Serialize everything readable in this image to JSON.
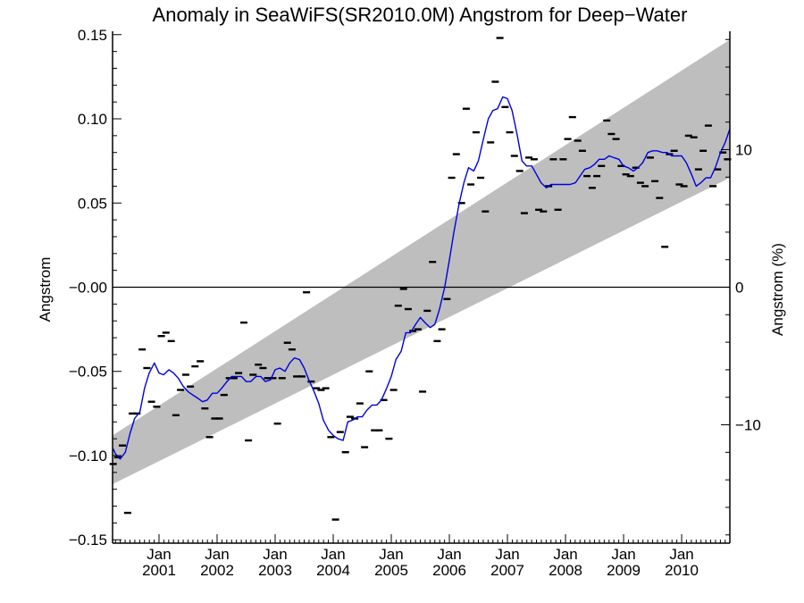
{
  "chart_data": {
    "type": "line",
    "title": "Anomaly in SeaWiFS(SR2010.0M) Angstrom for Deep−Water",
    "ylabel": "Angstrom",
    "ylabel_right": "Angstrom (%)",
    "xlabel": "",
    "xlim": [
      2000.2,
      2010.83
    ],
    "ylim": [
      -0.152,
      0.152
    ],
    "ylim_right": [
      -18.6,
      18.6
    ],
    "x_ticks": [
      {
        "value": 2001.0,
        "line1": "Jan",
        "line2": "2001"
      },
      {
        "value": 2002.0,
        "line1": "Jan",
        "line2": "2002"
      },
      {
        "value": 2003.0,
        "line1": "Jan",
        "line2": "2003"
      },
      {
        "value": 2004.0,
        "line1": "Jan",
        "line2": "2004"
      },
      {
        "value": 2005.0,
        "line1": "Jan",
        "line2": "2005"
      },
      {
        "value": 2006.0,
        "line1": "Jan",
        "line2": "2006"
      },
      {
        "value": 2007.0,
        "line1": "Jan",
        "line2": "2007"
      },
      {
        "value": 2008.0,
        "line1": "Jan",
        "line2": "2008"
      },
      {
        "value": 2009.0,
        "line1": "Jan",
        "line2": "2009"
      },
      {
        "value": 2010.0,
        "line1": "Jan",
        "line2": "2010"
      }
    ],
    "y_ticks": [
      {
        "value": 0.15,
        "label": "0.15"
      },
      {
        "value": 0.1,
        "label": "0.10"
      },
      {
        "value": 0.05,
        "label": "0.05"
      },
      {
        "value": 0.0,
        "label": "−0.00"
      },
      {
        "value": -0.05,
        "label": "−0.05"
      },
      {
        "value": -0.1,
        "label": "−0.10"
      },
      {
        "value": -0.15,
        "label": "−0.15"
      }
    ],
    "y_ticks_right": [
      {
        "value": 10,
        "label": "10"
      },
      {
        "value": 0,
        "label": "0"
      },
      {
        "value": -10,
        "label": "−10"
      }
    ],
    "zero_line": 0,
    "trend_band": {
      "color": "#bebebe",
      "upper": [
        [
          2000.2,
          -0.088
        ],
        [
          2010.83,
          0.147
        ]
      ],
      "lower": [
        [
          2000.2,
          -0.117
        ],
        [
          2010.83,
          0.065
        ]
      ]
    },
    "series": [
      {
        "kind": "markers",
        "color": "#000000",
        "x": [
          2000.21,
          2000.29,
          2000.37,
          2000.46,
          2000.54,
          2000.62,
          2000.71,
          2000.79,
          2000.87,
          2000.96,
          2001.04,
          2001.12,
          2001.21,
          2001.29,
          2001.37,
          2001.46,
          2001.54,
          2001.62,
          2001.71,
          2001.79,
          2001.87,
          2001.96,
          2002.04,
          2002.12,
          2002.21,
          2002.29,
          2002.37,
          2002.46,
          2002.54,
          2002.62,
          2002.71,
          2002.79,
          2002.87,
          2002.96,
          2003.04,
          2003.12,
          2003.21,
          2003.29,
          2003.37,
          2003.46,
          2003.54,
          2003.62,
          2003.71,
          2003.79,
          2003.87,
          2003.96,
          2004.04,
          2004.12,
          2004.21,
          2004.29,
          2004.37,
          2004.46,
          2004.54,
          2004.62,
          2004.71,
          2004.79,
          2004.87,
          2004.96,
          2005.04,
          2005.12,
          2005.21,
          2005.29,
          2005.37,
          2005.46,
          2005.54,
          2005.62,
          2005.71,
          2005.79,
          2005.87,
          2005.96,
          2006.04,
          2006.12,
          2006.21,
          2006.29,
          2006.37,
          2006.46,
          2006.54,
          2006.62,
          2006.71,
          2006.79,
          2006.87,
          2006.96,
          2007.04,
          2007.12,
          2007.21,
          2007.29,
          2007.37,
          2007.46,
          2007.54,
          2007.62,
          2007.71,
          2007.79,
          2007.87,
          2007.96,
          2008.04,
          2008.12,
          2008.21,
          2008.29,
          2008.37,
          2008.46,
          2008.54,
          2008.62,
          2008.71,
          2008.79,
          2008.87,
          2008.96,
          2009.04,
          2009.12,
          2009.21,
          2009.29,
          2009.37,
          2009.46,
          2009.54,
          2009.62,
          2009.71,
          2009.79,
          2009.87,
          2009.96,
          2010.04,
          2010.12,
          2010.21,
          2010.29,
          2010.37,
          2010.46,
          2010.54,
          2010.62,
          2010.71,
          2010.79
        ],
        "values": [
          -0.105,
          -0.101,
          -0.094,
          -0.134,
          -0.075,
          -0.075,
          -0.037,
          -0.048,
          -0.068,
          -0.071,
          -0.029,
          -0.027,
          -0.032,
          -0.076,
          -0.061,
          -0.052,
          -0.059,
          -0.047,
          -0.044,
          -0.072,
          -0.089,
          -0.078,
          -0.078,
          -0.064,
          -0.054,
          -0.054,
          -0.051,
          -0.021,
          -0.091,
          -0.052,
          -0.046,
          -0.048,
          -0.054,
          -0.054,
          -0.081,
          -0.054,
          -0.033,
          -0.037,
          -0.053,
          -0.053,
          -0.003,
          -0.056,
          -0.06,
          -0.061,
          -0.06,
          -0.089,
          -0.138,
          -0.086,
          -0.098,
          -0.077,
          -0.078,
          -0.069,
          -0.095,
          -0.05,
          -0.085,
          -0.085,
          -0.067,
          -0.09,
          -0.061,
          -0.011,
          -0.001,
          -0.013,
          -0.026,
          -0.025,
          -0.062,
          -0.014,
          0.015,
          -0.032,
          -0.025,
          -0.007,
          0.065,
          0.079,
          0.05,
          0.106,
          0.061,
          0.092,
          0.065,
          0.045,
          0.086,
          0.122,
          0.148,
          0.107,
          0.092,
          0.078,
          0.069,
          0.044,
          0.077,
          0.076,
          0.046,
          0.045,
          0.06,
          0.076,
          0.046,
          0.076,
          0.088,
          0.101,
          0.087,
          0.081,
          0.066,
          0.059,
          0.066,
          0.072,
          0.099,
          0.091,
          0.088,
          0.072,
          0.067,
          0.066,
          0.071,
          0.062,
          0.06,
          0.077,
          0.063,
          0.053,
          0.024,
          0.079,
          0.081,
          0.061,
          0.06,
          0.09,
          0.089,
          0.07,
          0.081,
          0.096,
          0.06,
          0.07,
          0.08,
          0.076
        ]
      },
      {
        "kind": "line",
        "color": "#0000dd",
        "x": [
          2000.21,
          2000.25,
          2000.33,
          2000.42,
          2000.5,
          2000.58,
          2000.67,
          2000.75,
          2000.83,
          2000.92,
          2001.0,
          2001.08,
          2001.17,
          2001.25,
          2001.33,
          2001.42,
          2001.5,
          2001.58,
          2001.67,
          2001.75,
          2001.83,
          2001.92,
          2002.0,
          2002.08,
          2002.17,
          2002.25,
          2002.33,
          2002.42,
          2002.5,
          2002.58,
          2002.67,
          2002.75,
          2002.83,
          2002.92,
          2003.0,
          2003.08,
          2003.17,
          2003.25,
          2003.33,
          2003.42,
          2003.5,
          2003.58,
          2003.67,
          2003.75,
          2003.83,
          2003.92,
          2004.0,
          2004.08,
          2004.17,
          2004.25,
          2004.33,
          2004.42,
          2004.5,
          2004.58,
          2004.67,
          2004.75,
          2004.83,
          2004.92,
          2005.0,
          2005.08,
          2005.17,
          2005.25,
          2005.33,
          2005.42,
          2005.5,
          2005.58,
          2005.67,
          2005.75,
          2005.83,
          2005.92,
          2006.0,
          2006.08,
          2006.17,
          2006.25,
          2006.33,
          2006.42,
          2006.5,
          2006.58,
          2006.67,
          2006.75,
          2006.83,
          2006.92,
          2007.0,
          2007.08,
          2007.17,
          2007.25,
          2007.33,
          2007.42,
          2007.5,
          2007.58,
          2007.67,
          2007.75,
          2007.83,
          2007.92,
          2008.0,
          2008.08,
          2008.17,
          2008.25,
          2008.33,
          2008.42,
          2008.5,
          2008.58,
          2008.67,
          2008.75,
          2008.83,
          2008.92,
          2009.0,
          2009.08,
          2009.17,
          2009.25,
          2009.33,
          2009.42,
          2009.5,
          2009.58,
          2009.67,
          2009.75,
          2009.83,
          2009.92,
          2010.0,
          2010.08,
          2010.17,
          2010.25,
          2010.33,
          2010.42,
          2010.5,
          2010.58,
          2010.67,
          2010.75,
          2010.83
        ],
        "values": [
          -0.096,
          -0.099,
          -0.102,
          -0.098,
          -0.087,
          -0.078,
          -0.074,
          -0.06,
          -0.051,
          -0.045,
          -0.051,
          -0.052,
          -0.049,
          -0.051,
          -0.054,
          -0.059,
          -0.062,
          -0.064,
          -0.066,
          -0.068,
          -0.067,
          -0.063,
          -0.063,
          -0.06,
          -0.056,
          -0.053,
          -0.053,
          -0.053,
          -0.056,
          -0.056,
          -0.053,
          -0.053,
          -0.056,
          -0.055,
          -0.049,
          -0.048,
          -0.05,
          -0.045,
          -0.042,
          -0.043,
          -0.048,
          -0.055,
          -0.062,
          -0.069,
          -0.079,
          -0.085,
          -0.088,
          -0.09,
          -0.091,
          -0.08,
          -0.079,
          -0.077,
          -0.077,
          -0.073,
          -0.07,
          -0.07,
          -0.067,
          -0.06,
          -0.053,
          -0.043,
          -0.038,
          -0.027,
          -0.027,
          -0.022,
          -0.018,
          -0.021,
          -0.024,
          -0.022,
          -0.013,
          0.0,
          0.016,
          0.033,
          0.05,
          0.062,
          0.071,
          0.069,
          0.075,
          0.087,
          0.1,
          0.105,
          0.106,
          0.113,
          0.112,
          0.105,
          0.09,
          0.075,
          0.072,
          0.072,
          0.067,
          0.062,
          0.059,
          0.061,
          0.061,
          0.061,
          0.061,
          0.061,
          0.062,
          0.066,
          0.07,
          0.071,
          0.073,
          0.076,
          0.076,
          0.078,
          0.077,
          0.076,
          0.072,
          0.071,
          0.069,
          0.071,
          0.074,
          0.08,
          0.081,
          0.081,
          0.08,
          0.08,
          0.078,
          0.078,
          0.078,
          0.074,
          0.067,
          0.06,
          0.062,
          0.065,
          0.065,
          0.071,
          0.08,
          0.086,
          0.094
        ]
      }
    ]
  }
}
